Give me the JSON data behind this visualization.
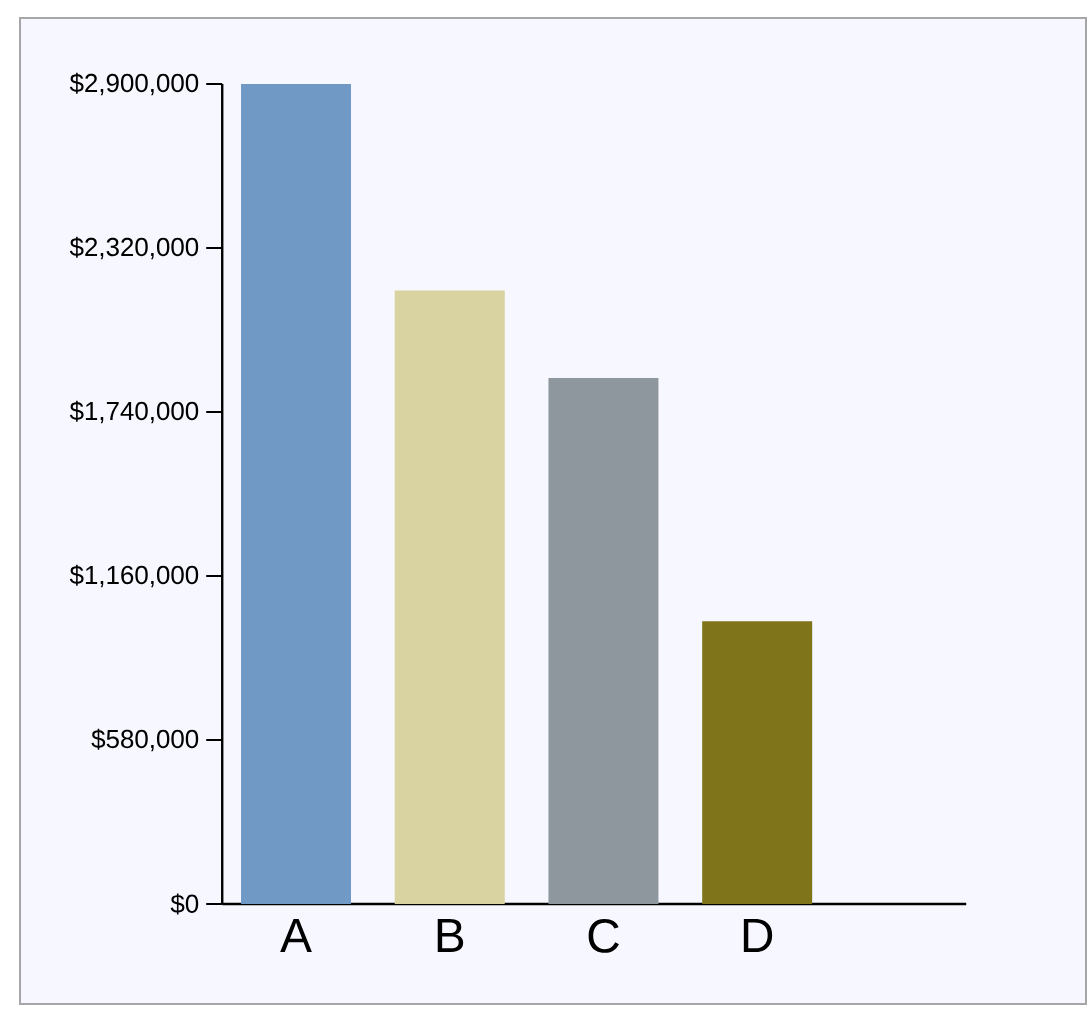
{
  "chart_data": {
    "type": "bar",
    "categories": [
      "A",
      "B",
      "C",
      "D"
    ],
    "values": [
      2900000,
      2170000,
      1860000,
      1000000
    ],
    "colors": [
      "#7099c6",
      "#d8d3a0",
      "#8f979e",
      "#80741a"
    ],
    "ylim": [
      0,
      2900000
    ],
    "yticks": [
      {
        "value": 0,
        "label": "$0"
      },
      {
        "value": 580000,
        "label": "$580,000"
      },
      {
        "value": 1160000,
        "label": "$1,160,000"
      },
      {
        "value": 1740000,
        "label": "$1,740,000"
      },
      {
        "value": 2320000,
        "label": "$2,320,000"
      },
      {
        "value": 2900000,
        "label": "$2,900,000"
      }
    ]
  }
}
